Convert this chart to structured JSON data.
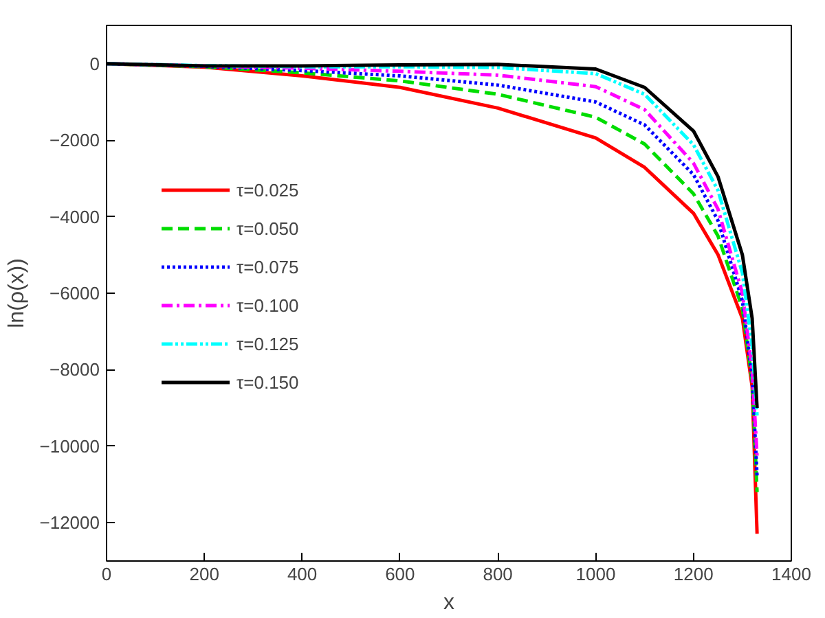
{
  "chart_data": {
    "type": "line",
    "xlabel": "x",
    "ylabel": "ln(ρ(x))",
    "x": [
      0,
      200,
      400,
      600,
      800,
      1000,
      1100,
      1200,
      1250,
      1300,
      1320,
      1330
    ],
    "series": [
      {
        "name": "τ=0.025",
        "color": "#ff0000",
        "line_style": "solid",
        "values": [
          0,
          -90,
          -320,
          -620,
          -1160,
          -1940,
          -2710,
          -3910,
          -4990,
          -6660,
          -8450,
          -12290
        ]
      },
      {
        "name": "τ=0.050",
        "color": "#00dd00",
        "line_style": "dashed",
        "values": [
          0,
          -80,
          -240,
          -450,
          -800,
          -1400,
          -2100,
          -3400,
          -4500,
          -6400,
          -8300,
          -11200
        ]
      },
      {
        "name": "τ=0.075",
        "color": "#0000ff",
        "line_style": "dotted",
        "values": [
          0,
          -70,
          -180,
          -320,
          -560,
          -1000,
          -1600,
          -2900,
          -4100,
          -6200,
          -8200,
          -10780
        ]
      },
      {
        "name": "τ=0.100",
        "color": "#ff00ff",
        "line_style": "dashdot",
        "values": [
          0,
          -60,
          -120,
          -200,
          -300,
          -600,
          -1200,
          -2600,
          -3800,
          -6000,
          -8000,
          -10250
        ]
      },
      {
        "name": "τ=0.125",
        "color": "#00ffff",
        "line_style": "dashdotdot",
        "values": [
          0,
          -50,
          -80,
          -80,
          -100,
          -260,
          -800,
          -2120,
          -3310,
          -5470,
          -7380,
          -9200
        ]
      },
      {
        "name": "τ=0.150",
        "color": "#000000",
        "line_style": "solid",
        "values": [
          0,
          -60,
          -60,
          -30,
          -20,
          -140,
          -620,
          -1760,
          -2950,
          -5000,
          -6660,
          -9000
        ]
      }
    ],
    "xlim": [
      0,
      1400
    ],
    "xticks": [
      0,
      200,
      400,
      600,
      800,
      1000,
      1200,
      1400
    ],
    "ylim": [
      -13000,
      1000
    ],
    "yticks": [
      0,
      -2000,
      -4000,
      -6000,
      -8000,
      -10000,
      -12000
    ],
    "grid": false,
    "legend": "left"
  }
}
